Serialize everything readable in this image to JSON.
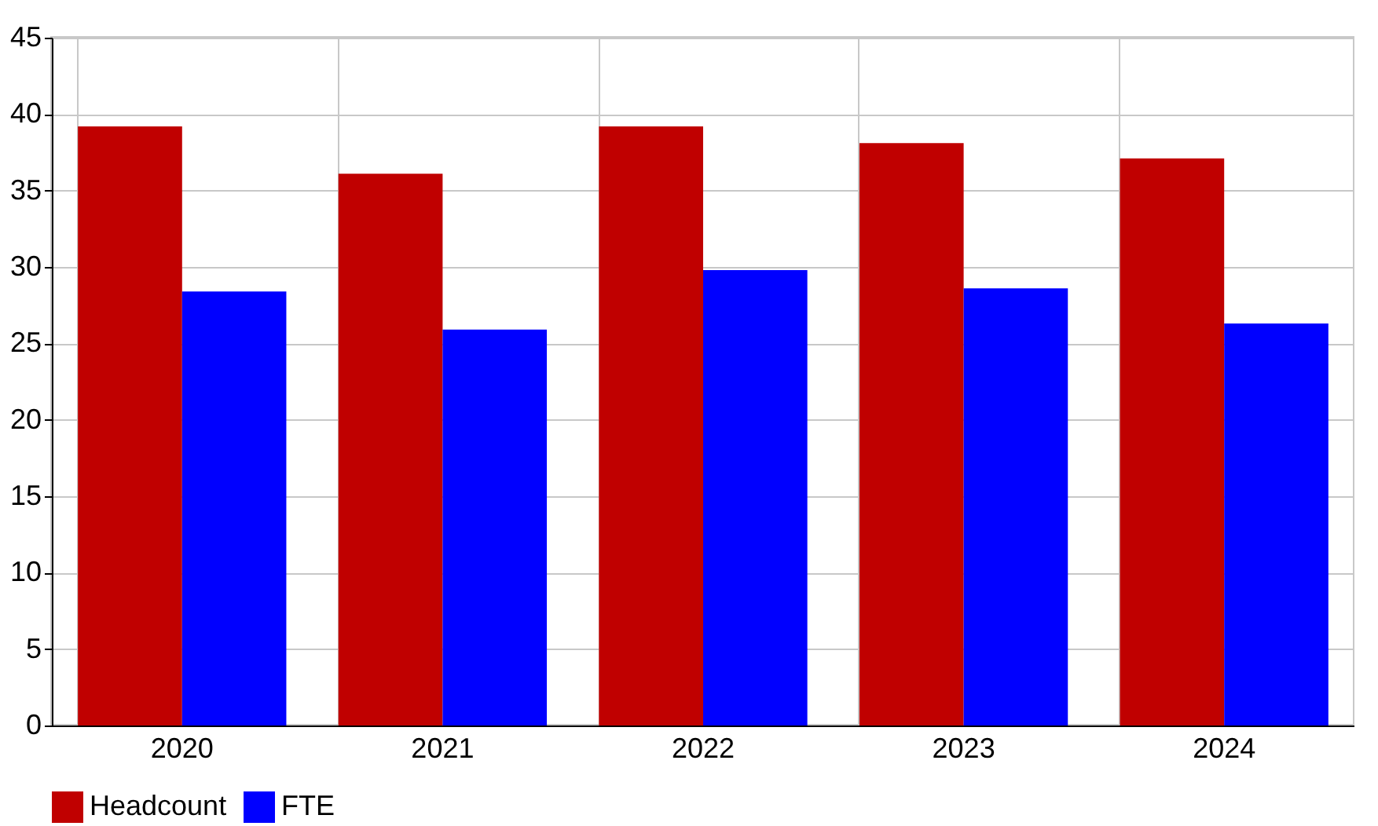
{
  "chart_data": {
    "type": "bar",
    "categories": [
      "2020",
      "2021",
      "2022",
      "2023",
      "2024"
    ],
    "series": [
      {
        "name": "Headcount",
        "color": "#c00000",
        "values": [
          39.2,
          36.1,
          39.2,
          38.1,
          37.1
        ]
      },
      {
        "name": "FTE",
        "color": "#0000ff",
        "values": [
          28.4,
          25.9,
          29.8,
          28.6,
          26.3
        ]
      }
    ],
    "ylim": [
      0,
      45
    ],
    "yticks": [
      0,
      5,
      10,
      15,
      20,
      25,
      30,
      35,
      40,
      45
    ],
    "grid": true,
    "legend": "bottom"
  }
}
